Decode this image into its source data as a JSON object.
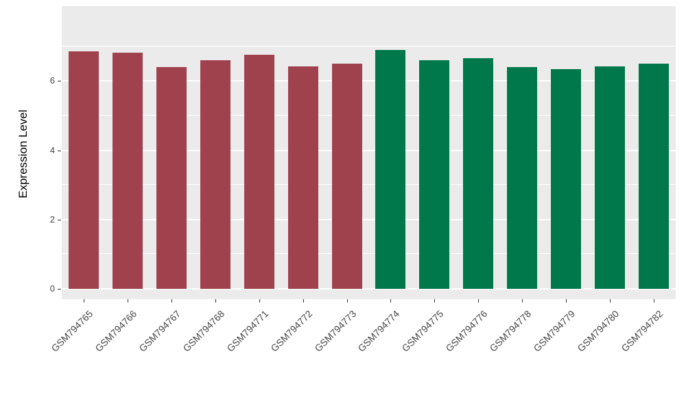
{
  "chart_data": {
    "type": "bar",
    "title": "",
    "xlabel": "",
    "ylabel": "Expression Level",
    "categories": [
      "GSM794765",
      "GSM794766",
      "GSM794767",
      "GSM794768",
      "GSM794771",
      "GSM794772",
      "GSM794773",
      "GSM794774",
      "GSM794775",
      "GSM794776",
      "GSM794778",
      "GSM794779",
      "GSM794780",
      "GSM794782"
    ],
    "values": [
      6.85,
      6.82,
      6.4,
      6.6,
      6.75,
      6.43,
      6.5,
      6.9,
      6.6,
      6.66,
      6.4,
      6.35,
      6.43,
      6.5
    ],
    "groups": [
      "group1",
      "group1",
      "group1",
      "group1",
      "group1",
      "group1",
      "group1",
      "group2",
      "group2",
      "group2",
      "group2",
      "group2",
      "group2",
      "group2"
    ],
    "group_colors": {
      "group1": "#A0414E",
      "group2": "#00784B"
    },
    "ylim": [
      0,
      8.16
    ],
    "yticks": [
      0,
      2,
      4,
      6
    ],
    "ytick_labels": [
      "0",
      "2",
      "4",
      "6"
    ],
    "minor_ticks": [
      1,
      3,
      5,
      7
    ],
    "grid": true,
    "legend": "none",
    "panel_bg": "#EBEBEB",
    "grid_color": "#FFFFFF",
    "tick_label_color": "#454545",
    "tick_mark_color": "#333333",
    "axis_title_color": "#000000"
  }
}
